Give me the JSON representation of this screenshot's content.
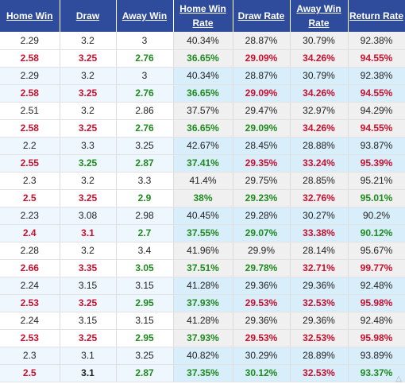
{
  "headers": [
    {
      "line1": "Home Win",
      "line2": ""
    },
    {
      "line1": "Draw",
      "line2": ""
    },
    {
      "line1": "Away Win",
      "line2": ""
    },
    {
      "line1": "Home Win",
      "line2": "Rate"
    },
    {
      "line1": "Draw Rate",
      "line2": ""
    },
    {
      "line1": "Away Win",
      "line2": "Rate"
    },
    {
      "line1": "Return Rate",
      "line2": ""
    }
  ],
  "colors": {
    "header_bg": "#2e4b9c",
    "red": "#c8102e",
    "green": "#1f8a1f",
    "row_blue": "#d8eefa"
  },
  "rows": [
    {
      "bold": false,
      "alt": false,
      "cells": [
        [
          "2.29",
          "dark"
        ],
        [
          "3.2",
          "dark"
        ],
        [
          "3",
          "dark"
        ],
        [
          "40.34%",
          "dark"
        ],
        [
          "28.87%",
          "dark"
        ],
        [
          "30.79%",
          "dark"
        ],
        [
          "92.38%",
          "dark"
        ]
      ]
    },
    {
      "bold": true,
      "alt": false,
      "cells": [
        [
          "2.58",
          "red"
        ],
        [
          "3.25",
          "red"
        ],
        [
          "2.76",
          "green"
        ],
        [
          "36.65%",
          "green"
        ],
        [
          "29.09%",
          "red"
        ],
        [
          "34.26%",
          "red"
        ],
        [
          "94.55%",
          "red"
        ]
      ]
    },
    {
      "bold": false,
      "alt": true,
      "cells": [
        [
          "2.29",
          "dark"
        ],
        [
          "3.2",
          "dark"
        ],
        [
          "3",
          "dark"
        ],
        [
          "40.34%",
          "dark"
        ],
        [
          "28.87%",
          "dark"
        ],
        [
          "30.79%",
          "dark"
        ],
        [
          "92.38%",
          "dark"
        ]
      ]
    },
    {
      "bold": true,
      "alt": true,
      "cells": [
        [
          "2.58",
          "red"
        ],
        [
          "3.25",
          "red"
        ],
        [
          "2.76",
          "green"
        ],
        [
          "36.65%",
          "green"
        ],
        [
          "29.09%",
          "red"
        ],
        [
          "34.26%",
          "red"
        ],
        [
          "94.55%",
          "red"
        ]
      ]
    },
    {
      "bold": false,
      "alt": false,
      "cells": [
        [
          "2.51",
          "dark"
        ],
        [
          "3.2",
          "dark"
        ],
        [
          "2.86",
          "dark"
        ],
        [
          "37.57%",
          "dark"
        ],
        [
          "29.47%",
          "dark"
        ],
        [
          "32.97%",
          "dark"
        ],
        [
          "94.29%",
          "dark"
        ]
      ]
    },
    {
      "bold": true,
      "alt": false,
      "cells": [
        [
          "2.58",
          "red"
        ],
        [
          "3.25",
          "red"
        ],
        [
          "2.76",
          "green"
        ],
        [
          "36.65%",
          "green"
        ],
        [
          "29.09%",
          "green"
        ],
        [
          "34.26%",
          "red"
        ],
        [
          "94.55%",
          "red"
        ]
      ]
    },
    {
      "bold": false,
      "alt": true,
      "cells": [
        [
          "2.2",
          "dark"
        ],
        [
          "3.3",
          "dark"
        ],
        [
          "3.25",
          "dark"
        ],
        [
          "42.67%",
          "dark"
        ],
        [
          "28.45%",
          "dark"
        ],
        [
          "28.88%",
          "dark"
        ],
        [
          "93.87%",
          "dark"
        ]
      ]
    },
    {
      "bold": true,
      "alt": true,
      "cells": [
        [
          "2.55",
          "red"
        ],
        [
          "3.25",
          "green"
        ],
        [
          "2.87",
          "green"
        ],
        [
          "37.41%",
          "green"
        ],
        [
          "29.35%",
          "red"
        ],
        [
          "33.24%",
          "red"
        ],
        [
          "95.39%",
          "red"
        ]
      ]
    },
    {
      "bold": false,
      "alt": false,
      "cells": [
        [
          "2.3",
          "dark"
        ],
        [
          "3.2",
          "dark"
        ],
        [
          "3.3",
          "dark"
        ],
        [
          "41.4%",
          "dark"
        ],
        [
          "29.75%",
          "dark"
        ],
        [
          "28.85%",
          "dark"
        ],
        [
          "95.21%",
          "dark"
        ]
      ]
    },
    {
      "bold": true,
      "alt": false,
      "cells": [
        [
          "2.5",
          "red"
        ],
        [
          "3.25",
          "red"
        ],
        [
          "2.9",
          "green"
        ],
        [
          "38%",
          "green"
        ],
        [
          "29.23%",
          "green"
        ],
        [
          "32.76%",
          "red"
        ],
        [
          "95.01%",
          "green"
        ]
      ]
    },
    {
      "bold": false,
      "alt": true,
      "cells": [
        [
          "2.23",
          "dark"
        ],
        [
          "3.08",
          "dark"
        ],
        [
          "2.98",
          "dark"
        ],
        [
          "40.45%",
          "dark"
        ],
        [
          "29.28%",
          "dark"
        ],
        [
          "30.27%",
          "dark"
        ],
        [
          "90.2%",
          "dark"
        ]
      ]
    },
    {
      "bold": true,
      "alt": true,
      "cells": [
        [
          "2.4",
          "red"
        ],
        [
          "3.1",
          "red"
        ],
        [
          "2.7",
          "green"
        ],
        [
          "37.55%",
          "green"
        ],
        [
          "29.07%",
          "green"
        ],
        [
          "33.38%",
          "red"
        ],
        [
          "90.12%",
          "green"
        ]
      ]
    },
    {
      "bold": false,
      "alt": false,
      "cells": [
        [
          "2.28",
          "dark"
        ],
        [
          "3.2",
          "dark"
        ],
        [
          "3.4",
          "dark"
        ],
        [
          "41.96%",
          "dark"
        ],
        [
          "29.9%",
          "dark"
        ],
        [
          "28.14%",
          "dark"
        ],
        [
          "95.67%",
          "dark"
        ]
      ]
    },
    {
      "bold": true,
      "alt": false,
      "cells": [
        [
          "2.66",
          "red"
        ],
        [
          "3.35",
          "red"
        ],
        [
          "3.05",
          "green"
        ],
        [
          "37.51%",
          "green"
        ],
        [
          "29.78%",
          "green"
        ],
        [
          "32.71%",
          "red"
        ],
        [
          "99.77%",
          "red"
        ]
      ]
    },
    {
      "bold": false,
      "alt": true,
      "cells": [
        [
          "2.24",
          "dark"
        ],
        [
          "3.15",
          "dark"
        ],
        [
          "3.15",
          "dark"
        ],
        [
          "41.28%",
          "dark"
        ],
        [
          "29.36%",
          "dark"
        ],
        [
          "29.36%",
          "dark"
        ],
        [
          "92.48%",
          "dark"
        ]
      ]
    },
    {
      "bold": true,
      "alt": true,
      "cells": [
        [
          "2.53",
          "red"
        ],
        [
          "3.25",
          "red"
        ],
        [
          "2.95",
          "green"
        ],
        [
          "37.93%",
          "green"
        ],
        [
          "29.53%",
          "red"
        ],
        [
          "32.53%",
          "red"
        ],
        [
          "95.98%",
          "red"
        ]
      ]
    },
    {
      "bold": false,
      "alt": false,
      "cells": [
        [
          "2.24",
          "dark"
        ],
        [
          "3.15",
          "dark"
        ],
        [
          "3.15",
          "dark"
        ],
        [
          "41.28%",
          "dark"
        ],
        [
          "29.36%",
          "dark"
        ],
        [
          "29.36%",
          "dark"
        ],
        [
          "92.48%",
          "dark"
        ]
      ]
    },
    {
      "bold": true,
      "alt": false,
      "cells": [
        [
          "2.53",
          "red"
        ],
        [
          "3.25",
          "red"
        ],
        [
          "2.95",
          "green"
        ],
        [
          "37.93%",
          "green"
        ],
        [
          "29.53%",
          "red"
        ],
        [
          "32.53%",
          "red"
        ],
        [
          "95.98%",
          "red"
        ]
      ]
    },
    {
      "bold": false,
      "alt": true,
      "cells": [
        [
          "2.3",
          "dark"
        ],
        [
          "3.1",
          "dark"
        ],
        [
          "3.25",
          "dark"
        ],
        [
          "40.82%",
          "dark"
        ],
        [
          "30.29%",
          "dark"
        ],
        [
          "28.89%",
          "dark"
        ],
        [
          "93.89%",
          "dark"
        ]
      ]
    },
    {
      "bold": true,
      "alt": true,
      "cells": [
        [
          "2.5",
          "red"
        ],
        [
          "3.1",
          "dark"
        ],
        [
          "2.87",
          "green"
        ],
        [
          "37.35%",
          "green"
        ],
        [
          "30.12%",
          "green"
        ],
        [
          "32.53%",
          "red"
        ],
        [
          "93.37%",
          "green"
        ]
      ]
    }
  ],
  "corner_mark": "△"
}
